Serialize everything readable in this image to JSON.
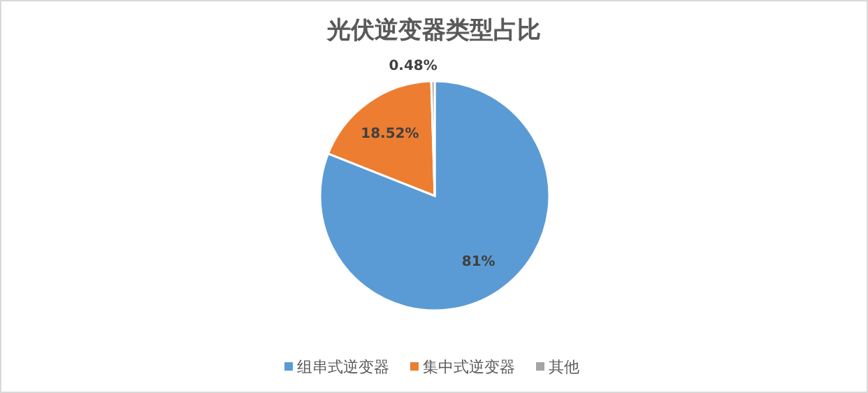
{
  "chart_data": {
    "type": "pie",
    "title": "光伏逆变器类型占比",
    "categories": [
      "组串式逆变器",
      "集中式逆变器",
      "其他"
    ],
    "values": [
      81,
      18.52,
      0.48
    ],
    "colors": [
      "#5b9bd5",
      "#ed7d31",
      "#a5a5a5"
    ],
    "value_labels": [
      "81%",
      "18.52%",
      "0.48%"
    ],
    "legend": "bottom"
  }
}
